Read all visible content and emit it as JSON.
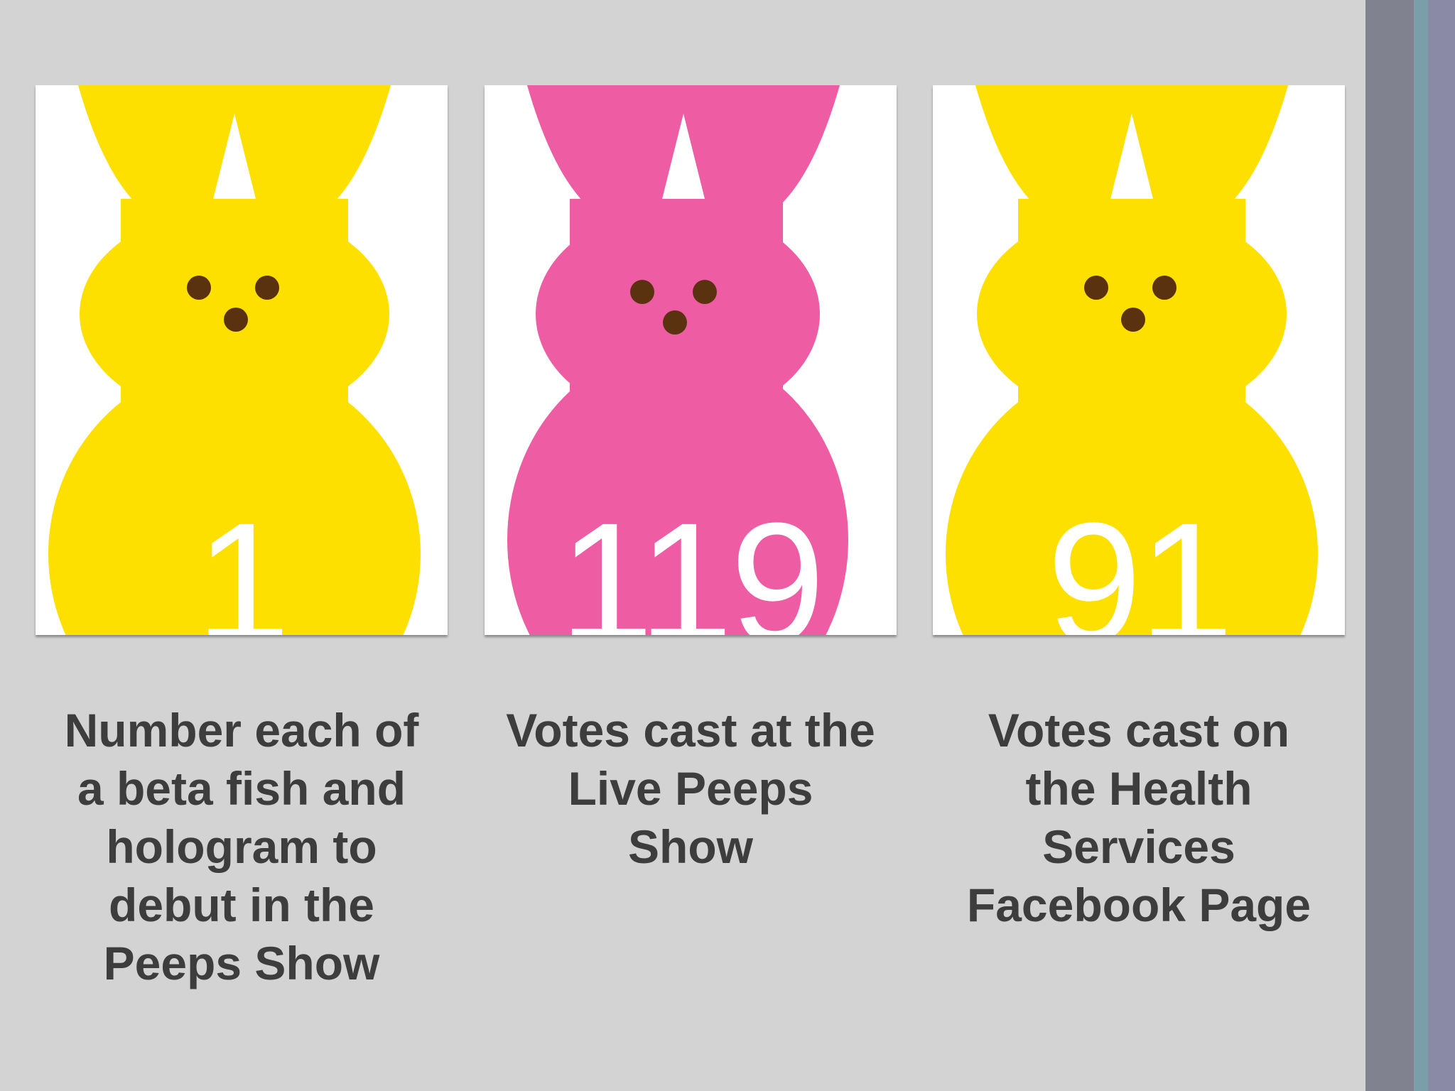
{
  "colors": {
    "background": "#d3d3d4",
    "peep_yellow": "#fde000",
    "peep_pink": "#ee5da3",
    "eye_brown": "#5a3210",
    "caption_text": "#3d3d3d"
  },
  "cards": [
    {
      "number": "1",
      "color": "#fde000",
      "caption": "Number each of a beta fish and hologram to debut in the Peeps Show",
      "caption_lines": [
        "Number each of",
        "a beta fish and",
        "hologram to",
        "debut in the",
        "Peeps Show"
      ]
    },
    {
      "number": "119",
      "color": "#ee5da3",
      "caption": "Votes cast at the Live Peeps Show",
      "caption_lines": [
        "Votes cast at the",
        "Live Peeps",
        "Show"
      ]
    },
    {
      "number": "91",
      "color": "#fde000",
      "caption": "Votes cast on the Health Services Facebook Page",
      "caption_lines": [
        "Votes cast on",
        "the Health",
        "Services",
        "Facebook Page"
      ]
    }
  ]
}
